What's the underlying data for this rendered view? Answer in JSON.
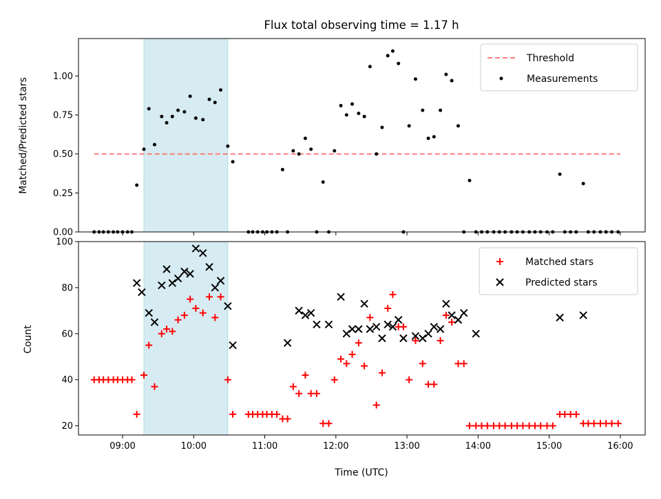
{
  "chart_data": [
    {
      "type": "scatter",
      "title": "Flux total observing time = 1.17 h",
      "xlabel": "",
      "ylabel": "Matched/Predicted stars",
      "xlim": [
        8.38,
        16.35
      ],
      "ylim": [
        0.0,
        1.24
      ],
      "yticks": [
        0.0,
        0.25,
        0.5,
        0.75,
        1.0
      ],
      "ytick_labels": [
        "0.00",
        "0.25",
        "0.50",
        "0.75",
        "1.00"
      ],
      "xticks": [
        9,
        10,
        11,
        12,
        13,
        14,
        15,
        16
      ],
      "show_xtick_labels": false,
      "grid": false,
      "legend_position": "top-right",
      "shaded_region": {
        "x_start": 9.3,
        "x_end": 10.48,
        "color": "#add8e6"
      },
      "threshold": {
        "name": "Threshold",
        "y": 0.5,
        "x_start": 8.6,
        "x_end": 16.0,
        "color": "#ff7b7b",
        "style": "dashed"
      },
      "series": [
        {
          "name": "Measurements",
          "color": "#000000",
          "marker": "dot",
          "x": [
            8.6,
            8.67,
            8.73,
            8.8,
            8.87,
            8.93,
            9.0,
            9.07,
            9.13,
            9.2,
            9.3,
            9.37,
            9.45,
            9.55,
            9.62,
            9.7,
            9.78,
            9.87,
            9.95,
            10.03,
            10.13,
            10.22,
            10.3,
            10.38,
            10.48,
            10.55,
            10.77,
            10.83,
            10.9,
            10.97,
            11.03,
            11.1,
            11.17,
            11.25,
            11.32,
            11.4,
            11.48,
            11.57,
            11.65,
            11.73,
            11.82,
            11.9,
            11.98,
            12.07,
            12.15,
            12.23,
            12.32,
            12.4,
            12.48,
            12.57,
            12.65,
            12.73,
            12.8,
            12.88,
            12.95,
            13.03,
            13.12,
            13.22,
            13.3,
            13.38,
            13.47,
            13.55,
            13.63,
            13.72,
            13.8,
            13.88,
            13.97,
            14.05,
            14.13,
            14.22,
            14.3,
            14.38,
            14.47,
            14.55,
            14.63,
            14.72,
            14.8,
            14.88,
            14.97,
            15.05,
            15.15,
            15.22,
            15.3,
            15.38,
            15.48,
            15.55,
            15.63,
            15.72,
            15.8,
            15.88,
            15.97
          ],
          "y": [
            0.0,
            0.0,
            0.0,
            0.0,
            0.0,
            0.0,
            0.0,
            0.0,
            0.0,
            0.3,
            0.53,
            0.79,
            0.56,
            0.74,
            0.7,
            0.74,
            0.78,
            0.77,
            0.87,
            0.73,
            0.72,
            0.85,
            0.83,
            0.91,
            0.55,
            0.45,
            0.0,
            0.0,
            0.0,
            0.0,
            0.0,
            0.0,
            0.0,
            0.4,
            0.0,
            0.52,
            0.5,
            0.6,
            0.53,
            0.0,
            0.32,
            0.0,
            0.52,
            0.81,
            0.75,
            0.82,
            0.76,
            0.74,
            1.06,
            0.5,
            0.67,
            1.13,
            1.16,
            1.08,
            0.0,
            0.68,
            0.98,
            0.78,
            0.6,
            0.61,
            0.78,
            1.01,
            0.97,
            0.68,
            0.0,
            0.33,
            0.0,
            0.0,
            0.0,
            0.0,
            0.0,
            0.0,
            0.0,
            0.0,
            0.0,
            0.0,
            0.0,
            0.0,
            0.0,
            0.0,
            0.37,
            0.0,
            0.0,
            0.0,
            0.31,
            0.0,
            0.0,
            0.0,
            0.0,
            0.0,
            0.0
          ]
        }
      ]
    },
    {
      "type": "scatter",
      "title": "",
      "xlabel": "Time (UTC)",
      "ylabel": "Count",
      "xlim": [
        8.38,
        16.35
      ],
      "ylim": [
        16,
        100
      ],
      "yticks": [
        20,
        40,
        60,
        80,
        100
      ],
      "ytick_labels": [
        "20",
        "40",
        "60",
        "80",
        "100"
      ],
      "xticks": [
        9,
        10,
        11,
        12,
        13,
        14,
        15,
        16
      ],
      "xtick_labels": [
        "09:00",
        "10:00",
        "11:00",
        "12:00",
        "13:00",
        "14:00",
        "15:00",
        "16:00"
      ],
      "grid": false,
      "legend_position": "top-right",
      "shaded_region": {
        "x_start": 9.3,
        "x_end": 10.48,
        "color": "#add8e6"
      },
      "series": [
        {
          "name": "Matched stars",
          "color": "#ff0000",
          "marker": "plus",
          "x": [
            8.6,
            8.67,
            8.73,
            8.8,
            8.87,
            8.93,
            9.0,
            9.07,
            9.13,
            9.2,
            9.3,
            9.37,
            9.45,
            9.55,
            9.62,
            9.7,
            9.78,
            9.87,
            9.95,
            10.03,
            10.13,
            10.22,
            10.3,
            10.38,
            10.48,
            10.55,
            10.77,
            10.83,
            10.9,
            10.97,
            11.03,
            11.1,
            11.17,
            11.25,
            11.32,
            11.4,
            11.48,
            11.57,
            11.65,
            11.73,
            11.82,
            11.9,
            11.98,
            12.07,
            12.15,
            12.23,
            12.32,
            12.4,
            12.48,
            12.57,
            12.65,
            12.73,
            12.8,
            12.88,
            12.95,
            13.03,
            13.12,
            13.22,
            13.3,
            13.38,
            13.47,
            13.55,
            13.63,
            13.72,
            13.8,
            13.88,
            13.97,
            14.05,
            14.13,
            14.22,
            14.3,
            14.38,
            14.47,
            14.55,
            14.63,
            14.72,
            14.8,
            14.88,
            14.97,
            15.05,
            15.15,
            15.22,
            15.3,
            15.38,
            15.48,
            15.55,
            15.63,
            15.72,
            15.8,
            15.88,
            15.97
          ],
          "y": [
            40,
            40,
            40,
            40,
            40,
            40,
            40,
            40,
            40,
            25,
            42,
            55,
            37,
            60,
            62,
            61,
            66,
            68,
            75,
            71,
            69,
            76,
            67,
            76,
            40,
            25,
            25,
            25,
            25,
            25,
            25,
            25,
            25,
            23,
            23,
            37,
            34,
            42,
            34,
            34,
            21,
            21,
            40,
            49,
            47,
            51,
            56,
            46,
            67,
            29,
            43,
            71,
            77,
            63,
            63,
            40,
            57,
            47,
            38,
            38,
            57,
            68,
            65,
            47,
            47,
            20,
            20,
            20,
            20,
            20,
            20,
            20,
            20,
            20,
            20,
            20,
            20,
            20,
            20,
            20,
            25,
            25,
            25,
            25,
            21,
            21,
            21,
            21,
            21,
            21,
            21
          ]
        },
        {
          "name": "Predicted stars",
          "color": "#000000",
          "marker": "x",
          "x": [
            9.2,
            9.27,
            9.37,
            9.45,
            9.55,
            9.62,
            9.7,
            9.78,
            9.87,
            9.95,
            10.03,
            10.13,
            10.22,
            10.3,
            10.38,
            10.48,
            10.55,
            11.32,
            11.48,
            11.57,
            11.65,
            11.73,
            11.9,
            12.07,
            12.15,
            12.23,
            12.32,
            12.4,
            12.48,
            12.57,
            12.65,
            12.73,
            12.8,
            12.88,
            12.95,
            13.12,
            13.22,
            13.3,
            13.38,
            13.47,
            13.55,
            13.63,
            13.72,
            13.8,
            13.97,
            15.15,
            15.48
          ],
          "y": [
            82,
            78,
            69,
            65,
            81,
            88,
            82,
            84,
            87,
            86,
            97,
            95,
            89,
            80,
            83,
            72,
            55,
            56,
            70,
            68,
            69,
            64,
            64,
            76,
            60,
            62,
            62,
            73,
            62,
            63,
            58,
            64,
            63,
            66,
            58,
            59,
            58,
            60,
            63,
            62,
            73,
            68,
            66,
            69,
            60,
            67,
            68
          ]
        }
      ]
    }
  ]
}
